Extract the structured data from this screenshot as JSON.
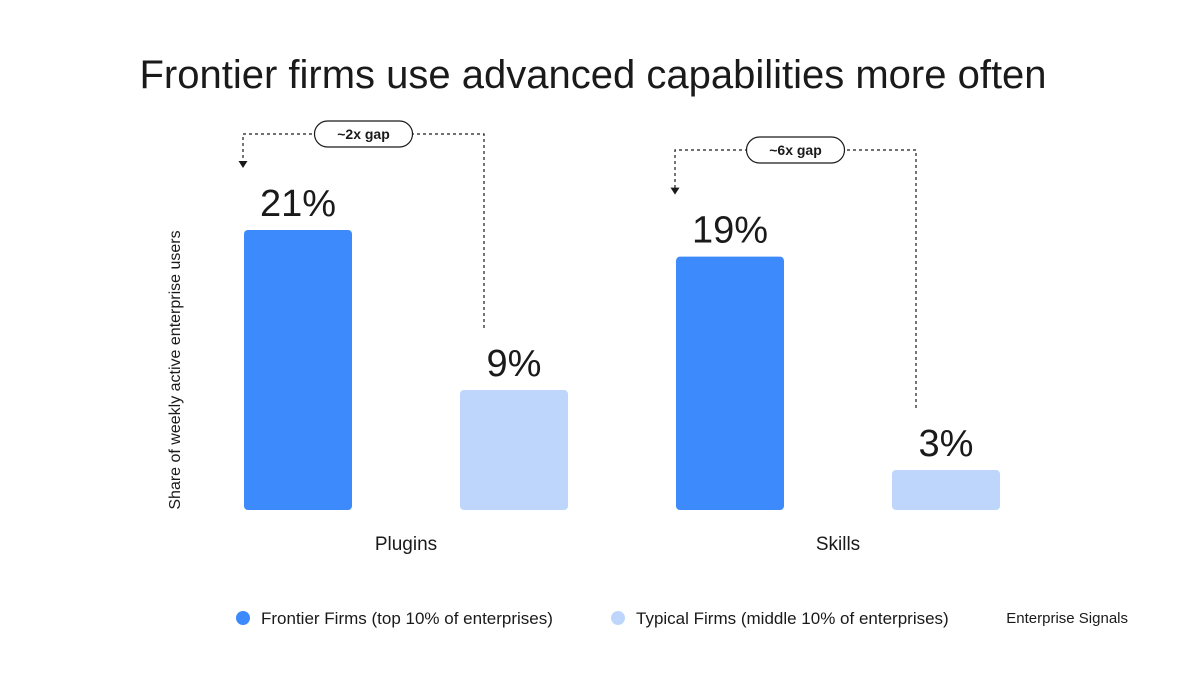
{
  "chart_data": {
    "type": "bar",
    "title": "Frontier firms use advanced capabilities more often",
    "ylabel": "Share of weekly active enterprise users",
    "xlabel": "",
    "categories": [
      "Plugins",
      "Skills"
    ],
    "ylim": [
      0,
      21
    ],
    "grid": false,
    "legend_position": "bottom",
    "series": [
      {
        "name": "Frontier Firms (top 10% of enterprises)",
        "values": [
          21,
          19
        ],
        "labels": [
          "21%",
          "19%"
        ],
        "color": "#3d8afc"
      },
      {
        "name": "Typical Firms (middle 10% of enterprises)",
        "values": [
          9,
          3
        ],
        "labels": [
          "9%",
          "3%"
        ],
        "color": "#bed6fb"
      }
    ],
    "annotations": [
      {
        "category": "Plugins",
        "text": "~2x gap"
      },
      {
        "category": "Skills",
        "text": "~6x gap"
      }
    ],
    "source": "Enterprise Signals"
  }
}
